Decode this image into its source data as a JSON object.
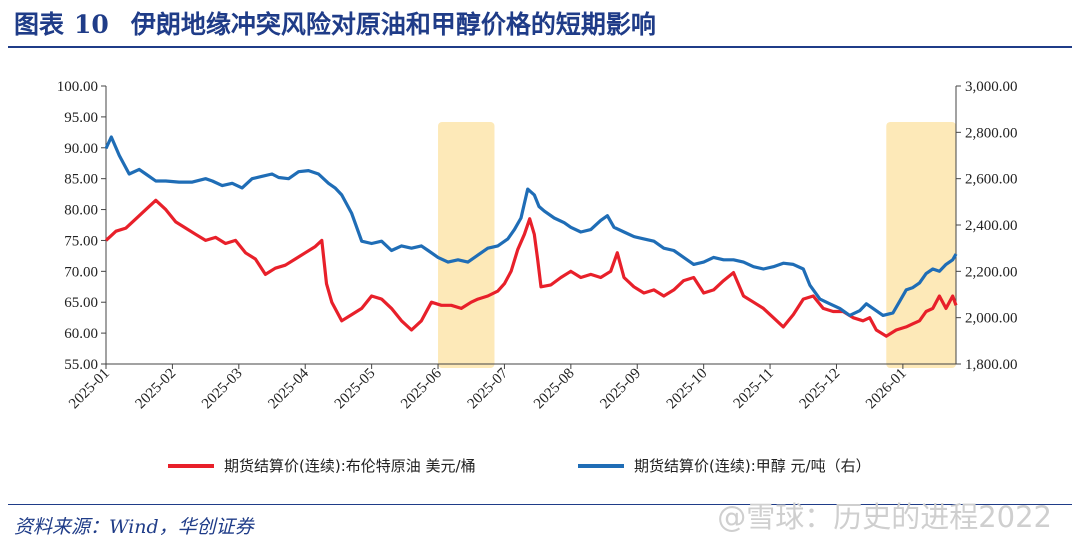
{
  "header": {
    "figure_label": "图表",
    "figure_number": "10",
    "title": "伊朗地缘冲突风险对原油和甲醇价格的短期影响"
  },
  "footer": {
    "source": "资料来源：Wind，华创证券",
    "watermark": "@雪球：历史的进程2022"
  },
  "colors": {
    "brent": "#e8202a",
    "methanol": "#1f6db6",
    "highlight": "#fde9b8",
    "brand": "#1f3c88"
  },
  "chart_data": {
    "type": "line",
    "title": "伊朗地缘冲突风险对原油和甲醇价格的短期影响",
    "x_tick_labels": [
      "2025-01",
      "2025-02",
      "2025-03",
      "2025-04",
      "2025-05",
      "2025-06",
      "2025-07",
      "2025-08",
      "2025-09",
      "2025-10",
      "2025-11",
      "2025-12",
      "2026-01"
    ],
    "x_range_months": [
      0,
      12.8
    ],
    "y_left": {
      "range": [
        55,
        100
      ],
      "ticks": [
        "55.00",
        "60.00",
        "65.00",
        "70.00",
        "75.00",
        "80.00",
        "85.00",
        "90.00",
        "95.00",
        "100.00"
      ]
    },
    "y_right": {
      "range": [
        1800,
        3000
      ],
      "ticks": [
        "1,800.00",
        "2,000.00",
        "2,200.00",
        "2,400.00",
        "2,600.00",
        "2,800.00",
        "3,000.00"
      ]
    },
    "highlight_ranges": [
      [
        5.0,
        5.85
      ],
      [
        11.75,
        12.8
      ]
    ],
    "legend": {
      "position": "bottom"
    },
    "series": [
      {
        "name": "期货结算价(连续):布伦特原油 美元/桶",
        "axis": "left",
        "points": [
          [
            0,
            75
          ],
          [
            0.15,
            76.5
          ],
          [
            0.3,
            77
          ],
          [
            0.45,
            78.5
          ],
          [
            0.6,
            80
          ],
          [
            0.75,
            81.5
          ],
          [
            0.9,
            80
          ],
          [
            1.05,
            78
          ],
          [
            1.2,
            77
          ],
          [
            1.35,
            76
          ],
          [
            1.5,
            75
          ],
          [
            1.65,
            75.5
          ],
          [
            1.8,
            74.5
          ],
          [
            1.95,
            75
          ],
          [
            2.1,
            73
          ],
          [
            2.25,
            72
          ],
          [
            2.4,
            69.5
          ],
          [
            2.55,
            70.5
          ],
          [
            2.7,
            71
          ],
          [
            2.85,
            72
          ],
          [
            3.0,
            73
          ],
          [
            3.15,
            74
          ],
          [
            3.25,
            75
          ],
          [
            3.32,
            68
          ],
          [
            3.4,
            65
          ],
          [
            3.55,
            62
          ],
          [
            3.7,
            63
          ],
          [
            3.85,
            64
          ],
          [
            4.0,
            66
          ],
          [
            4.15,
            65.5
          ],
          [
            4.3,
            64
          ],
          [
            4.45,
            62
          ],
          [
            4.6,
            60.5
          ],
          [
            4.75,
            62
          ],
          [
            4.9,
            65
          ],
          [
            5.05,
            64.5
          ],
          [
            5.2,
            64.5
          ],
          [
            5.35,
            64
          ],
          [
            5.5,
            65
          ],
          [
            5.6,
            65.5
          ],
          [
            5.75,
            66
          ],
          [
            5.9,
            66.8
          ],
          [
            6.0,
            68
          ],
          [
            6.1,
            70
          ],
          [
            6.2,
            73.5
          ],
          [
            6.3,
            76
          ],
          [
            6.38,
            78.5
          ],
          [
            6.45,
            76
          ],
          [
            6.5,
            72
          ],
          [
            6.55,
            67.5
          ],
          [
            6.7,
            67.8
          ],
          [
            6.85,
            69
          ],
          [
            7.0,
            70
          ],
          [
            7.15,
            69
          ],
          [
            7.3,
            69.5
          ],
          [
            7.45,
            69
          ],
          [
            7.6,
            70
          ],
          [
            7.7,
            73
          ],
          [
            7.8,
            69
          ],
          [
            7.95,
            67.5
          ],
          [
            8.1,
            66.5
          ],
          [
            8.25,
            67
          ],
          [
            8.4,
            66
          ],
          [
            8.55,
            67
          ],
          [
            8.7,
            68.5
          ],
          [
            8.85,
            69
          ],
          [
            9.0,
            66.5
          ],
          [
            9.15,
            67
          ],
          [
            9.3,
            68.5
          ],
          [
            9.45,
            69.8
          ],
          [
            9.6,
            66
          ],
          [
            9.75,
            65
          ],
          [
            9.9,
            64
          ],
          [
            10.05,
            62.5
          ],
          [
            10.2,
            61
          ],
          [
            10.35,
            63
          ],
          [
            10.5,
            65.5
          ],
          [
            10.65,
            66
          ],
          [
            10.8,
            64
          ],
          [
            10.95,
            63.5
          ],
          [
            11.1,
            63.5
          ],
          [
            11.25,
            62.5
          ],
          [
            11.4,
            62
          ],
          [
            11.5,
            62.5
          ],
          [
            11.6,
            60.5
          ],
          [
            11.75,
            59.5
          ],
          [
            11.9,
            60.5
          ],
          [
            12.05,
            61
          ],
          [
            12.15,
            61.5
          ],
          [
            12.25,
            62
          ],
          [
            12.35,
            63.5
          ],
          [
            12.45,
            64
          ],
          [
            12.55,
            66
          ],
          [
            12.65,
            64
          ],
          [
            12.75,
            66
          ],
          [
            12.8,
            64.5
          ]
        ]
      },
      {
        "name": "期货结算价(连续):甲醇 元/吨（右）",
        "axis": "right",
        "points": [
          [
            0,
            2730
          ],
          [
            0.08,
            2780
          ],
          [
            0.2,
            2700
          ],
          [
            0.35,
            2620
          ],
          [
            0.5,
            2640
          ],
          [
            0.6,
            2620
          ],
          [
            0.75,
            2590
          ],
          [
            0.9,
            2590
          ],
          [
            1.1,
            2585
          ],
          [
            1.3,
            2585
          ],
          [
            1.5,
            2600
          ],
          [
            1.6,
            2590
          ],
          [
            1.75,
            2570
          ],
          [
            1.9,
            2580
          ],
          [
            2.05,
            2560
          ],
          [
            2.2,
            2600
          ],
          [
            2.35,
            2610
          ],
          [
            2.5,
            2620
          ],
          [
            2.6,
            2605
          ],
          [
            2.75,
            2600
          ],
          [
            2.9,
            2630
          ],
          [
            3.05,
            2635
          ],
          [
            3.2,
            2620
          ],
          [
            3.35,
            2580
          ],
          [
            3.45,
            2560
          ],
          [
            3.55,
            2530
          ],
          [
            3.7,
            2450
          ],
          [
            3.85,
            2330
          ],
          [
            4.0,
            2320
          ],
          [
            4.15,
            2330
          ],
          [
            4.3,
            2290
          ],
          [
            4.45,
            2310
          ],
          [
            4.6,
            2300
          ],
          [
            4.75,
            2310
          ],
          [
            4.85,
            2290
          ],
          [
            5.0,
            2260
          ],
          [
            5.15,
            2240
          ],
          [
            5.3,
            2250
          ],
          [
            5.45,
            2240
          ],
          [
            5.6,
            2270
          ],
          [
            5.75,
            2300
          ],
          [
            5.9,
            2310
          ],
          [
            6.05,
            2340
          ],
          [
            6.15,
            2380
          ],
          [
            6.25,
            2430
          ],
          [
            6.35,
            2555
          ],
          [
            6.45,
            2530
          ],
          [
            6.52,
            2480
          ],
          [
            6.6,
            2460
          ],
          [
            6.75,
            2430
          ],
          [
            6.9,
            2410
          ],
          [
            7.0,
            2390
          ],
          [
            7.15,
            2370
          ],
          [
            7.3,
            2380
          ],
          [
            7.45,
            2420
          ],
          [
            7.55,
            2440
          ],
          [
            7.65,
            2390
          ],
          [
            7.8,
            2370
          ],
          [
            7.95,
            2350
          ],
          [
            8.1,
            2340
          ],
          [
            8.25,
            2330
          ],
          [
            8.4,
            2300
          ],
          [
            8.55,
            2290
          ],
          [
            8.7,
            2260
          ],
          [
            8.85,
            2230
          ],
          [
            9.0,
            2240
          ],
          [
            9.15,
            2260
          ],
          [
            9.3,
            2250
          ],
          [
            9.45,
            2250
          ],
          [
            9.6,
            2240
          ],
          [
            9.75,
            2220
          ],
          [
            9.9,
            2210
          ],
          [
            10.05,
            2220
          ],
          [
            10.2,
            2235
          ],
          [
            10.35,
            2230
          ],
          [
            10.5,
            2210
          ],
          [
            10.6,
            2140
          ],
          [
            10.75,
            2080
          ],
          [
            10.9,
            2060
          ],
          [
            11.05,
            2040
          ],
          [
            11.2,
            2010
          ],
          [
            11.35,
            2030
          ],
          [
            11.45,
            2060
          ],
          [
            11.55,
            2040
          ],
          [
            11.7,
            2010
          ],
          [
            11.85,
            2020
          ],
          [
            11.95,
            2070
          ],
          [
            12.05,
            2120
          ],
          [
            12.15,
            2130
          ],
          [
            12.25,
            2150
          ],
          [
            12.35,
            2190
          ],
          [
            12.45,
            2210
          ],
          [
            12.55,
            2200
          ],
          [
            12.65,
            2230
          ],
          [
            12.75,
            2250
          ],
          [
            12.8,
            2275
          ]
        ]
      }
    ]
  }
}
